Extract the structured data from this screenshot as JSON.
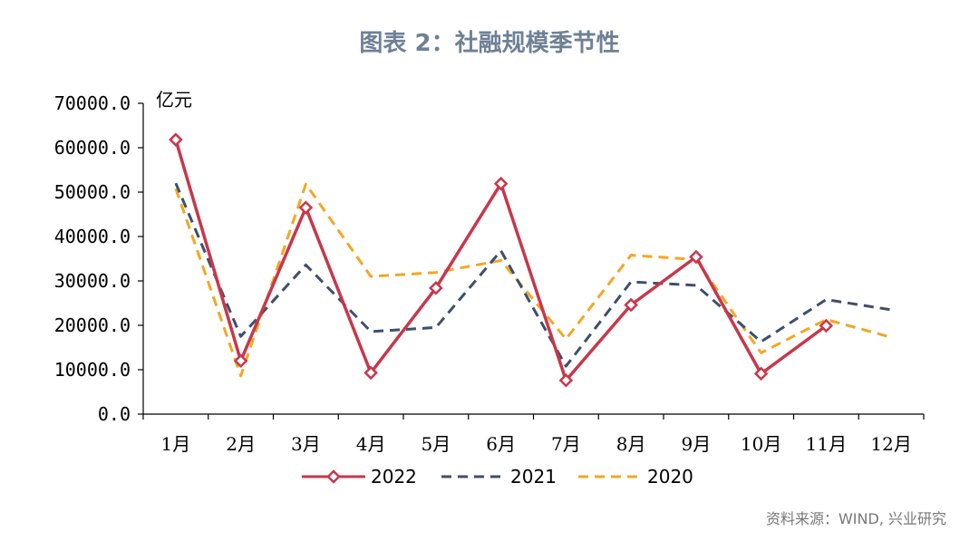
{
  "page": {
    "title": "图表 2：社融规模季节性",
    "source": "资料来源：WIND, 兴业研究"
  },
  "colors": {
    "title": "#6f8096",
    "source": "#777777",
    "axis": "#000000"
  },
  "chart_data": {
    "type": "line",
    "title": "图表 2：社融规模季节性",
    "ylabel": "亿元",
    "xlabel": "",
    "ylim": [
      0,
      70000
    ],
    "ytick_step": 10000,
    "ytick_labels": [
      "0.0",
      "10000.0",
      "20000.0",
      "30000.0",
      "40000.0",
      "50000.0",
      "60000.0",
      "70000.0"
    ],
    "categories": [
      "1月",
      "2月",
      "3月",
      "4月",
      "5月",
      "6月",
      "7月",
      "8月",
      "9月",
      "10月",
      "11月",
      "12月"
    ],
    "grid": false,
    "legend_position": "bottom",
    "series": [
      {
        "name": "2022",
        "color": "#c8374a",
        "style": "solid-diamond",
        "values": [
          61800,
          12000,
          46500,
          9300,
          28400,
          51900,
          7600,
          24600,
          35400,
          9100,
          19900,
          null
        ]
      },
      {
        "name": "2021",
        "color": "#3e4f6b",
        "style": "dashed",
        "values": [
          52000,
          17500,
          33600,
          18600,
          19500,
          36800,
          10800,
          29800,
          29000,
          16300,
          25800,
          23500
        ]
      },
      {
        "name": "2020",
        "color": "#f5a623",
        "style": "dashed",
        "values": [
          50800,
          8600,
          51800,
          31000,
          31900,
          34600,
          16900,
          35800,
          34800,
          13800,
          21300,
          17300
        ]
      }
    ]
  }
}
